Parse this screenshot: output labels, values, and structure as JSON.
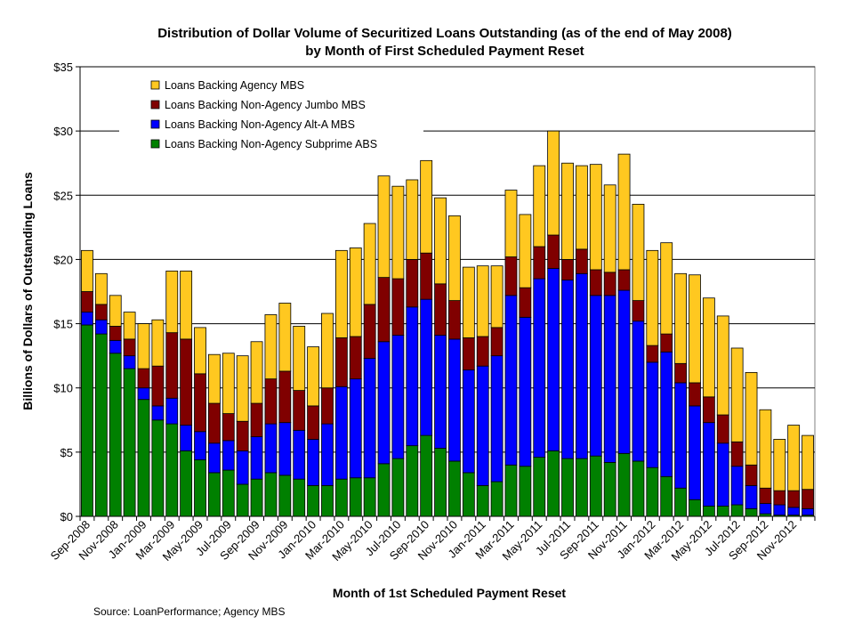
{
  "chart_data": {
    "type": "bar",
    "stacked": true,
    "title": "Distribution of Dollar Volume of Securitized Loans Outstanding (as of the end of May 2008)",
    "subtitle": "by Month of First Scheduled Payment Reset",
    "xlabel": "Month of 1st Scheduled Payment Reset",
    "ylabel": "Billions of Dollars of Outstanding Loans",
    "ylim": [
      0,
      35
    ],
    "yticks": [
      "$0",
      "$5",
      "$10",
      "$15",
      "$20",
      "$25",
      "$30",
      "$35"
    ],
    "grid": true,
    "legend_position": "top-left",
    "categories": [
      "Sep-2008",
      "Oct-2008",
      "Nov-2008",
      "Dec-2008",
      "Jan-2009",
      "Feb-2009",
      "Mar-2009",
      "Apr-2009",
      "May-2009",
      "Jun-2009",
      "Jul-2009",
      "Aug-2009",
      "Sep-2009",
      "Oct-2009",
      "Nov-2009",
      "Dec-2009",
      "Jan-2010",
      "Feb-2010",
      "Mar-2010",
      "Apr-2010",
      "May-2010",
      "Jun-2010",
      "Jul-2010",
      "Aug-2010",
      "Sep-2010",
      "Oct-2010",
      "Nov-2010",
      "Dec-2010",
      "Jan-2011",
      "Feb-2011",
      "Mar-2011",
      "Apr-2011",
      "May-2011",
      "Jun-2011",
      "Jul-2011",
      "Aug-2011",
      "Sep-2011",
      "Oct-2011",
      "Nov-2011",
      "Dec-2011",
      "Jan-2012",
      "Feb-2012",
      "Mar-2012",
      "Apr-2012",
      "May-2012",
      "Jun-2012",
      "Jul-2012",
      "Aug-2012",
      "Sep-2012",
      "Oct-2012",
      "Nov-2012",
      "Dec-2012"
    ],
    "xtick_labels": [
      "Sep-2008",
      "Nov-2008",
      "Jan-2009",
      "Mar-2009",
      "May-2009",
      "Jul-2009",
      "Sep-2009",
      "Nov-2009",
      "Jan-2010",
      "Mar-2010",
      "May-2010",
      "Jul-2010",
      "Sep-2010",
      "Nov-2010",
      "Jan-2011",
      "Mar-2011",
      "May-2011",
      "Jul-2011",
      "Sep-2011",
      "Nov-2011",
      "Jan-2012",
      "Mar-2012",
      "May-2012",
      "Jul-2012",
      "Sep-2012",
      "Nov-2012"
    ],
    "series": [
      {
        "name": "Loans Backing Non-Agency Subprime ABS",
        "color": "#008000",
        "values": [
          14.9,
          14.2,
          12.7,
          11.5,
          9.1,
          7.5,
          7.2,
          5.1,
          4.4,
          3.4,
          3.6,
          2.5,
          2.9,
          3.4,
          3.2,
          2.9,
          2.4,
          2.4,
          2.9,
          3.0,
          3.0,
          4.1,
          4.5,
          5.5,
          6.3,
          5.3,
          4.3,
          3.4,
          2.4,
          2.7,
          4.0,
          3.9,
          4.6,
          5.1,
          4.5,
          4.5,
          4.7,
          4.2,
          4.9,
          4.3,
          3.8,
          3.1,
          2.2,
          1.3,
          0.8,
          0.8,
          0.9,
          0.6,
          0.2,
          0.1,
          0.1,
          0.1
        ]
      },
      {
        "name": "Loans Backing Non-Agency Alt-A MBS",
        "color": "#0000ff",
        "values": [
          1.0,
          1.1,
          1.0,
          1.0,
          0.9,
          1.1,
          2.0,
          2.0,
          2.2,
          2.3,
          2.3,
          2.6,
          3.3,
          3.8,
          4.1,
          3.8,
          3.6,
          4.8,
          7.2,
          7.7,
          9.3,
          9.5,
          9.6,
          10.8,
          10.6,
          8.8,
          9.5,
          8.0,
          9.3,
          9.8,
          13.2,
          11.6,
          13.9,
          14.2,
          13.9,
          14.4,
          12.5,
          13.0,
          12.7,
          10.9,
          8.2,
          9.7,
          8.2,
          7.3,
          6.5,
          4.9,
          3.0,
          1.8,
          0.8,
          0.8,
          0.6,
          0.5
        ]
      },
      {
        "name": "Loans Backing Non-Agency Jumbo MBS",
        "color": "#800000",
        "values": [
          1.6,
          1.2,
          1.1,
          1.3,
          1.5,
          3.1,
          5.1,
          6.7,
          4.5,
          3.1,
          2.1,
          2.3,
          2.6,
          3.5,
          4.0,
          3.1,
          2.6,
          2.8,
          3.8,
          3.3,
          4.2,
          5.0,
          4.4,
          3.7,
          3.6,
          4.0,
          3.0,
          2.5,
          2.3,
          2.2,
          3.0,
          2.3,
          2.5,
          2.6,
          1.6,
          1.9,
          2.0,
          1.8,
          1.6,
          1.6,
          1.3,
          1.4,
          1.5,
          1.8,
          2.0,
          2.2,
          1.9,
          1.6,
          1.2,
          1.1,
          1.3,
          1.5
        ]
      },
      {
        "name": "Loans Backing Agency MBS",
        "color": "#ffc820",
        "values": [
          3.2,
          2.4,
          2.4,
          2.1,
          3.5,
          3.6,
          4.8,
          5.3,
          3.6,
          3.8,
          4.7,
          5.1,
          4.8,
          5.0,
          5.3,
          5.0,
          4.6,
          5.8,
          6.8,
          6.9,
          6.3,
          7.9,
          7.2,
          6.2,
          7.2,
          6.7,
          6.6,
          5.5,
          5.5,
          4.8,
          5.2,
          5.7,
          6.3,
          8.1,
          7.5,
          6.5,
          8.2,
          6.8,
          9.0,
          7.5,
          7.4,
          7.1,
          7.0,
          8.4,
          7.7,
          7.7,
          7.3,
          7.2,
          6.1,
          4.0,
          5.1,
          4.2
        ]
      }
    ]
  },
  "source_text": "Source:  LoanPerformance; Agency MBS"
}
